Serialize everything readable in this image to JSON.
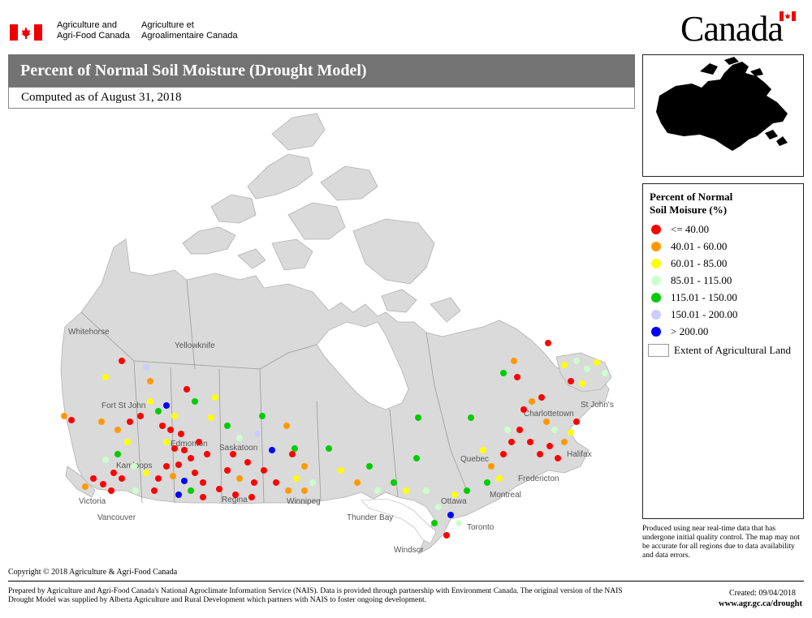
{
  "header": {
    "department_en_line1": "Agriculture and",
    "department_en_line2": "Agri-Food Canada",
    "department_fr_line1": "Agriculture et",
    "department_fr_line2": "Agroalimentaire Canada",
    "wordmark": "Canada"
  },
  "title": "Percent of Normal Soil Moisture (Drought Model)",
  "subtitle": "Computed as of August 31, 2018",
  "legend": {
    "title_line1": "Percent of Normal",
    "title_line2": "Soil Moisure (%)",
    "classes": [
      {
        "label": "<= 40.00",
        "color": "#ff0000"
      },
      {
        "label": "40.01 - 60.00",
        "color": "#ff9900"
      },
      {
        "label": "60.01 - 85.00",
        "color": "#ffff00"
      },
      {
        "label": "85.01 - 115.00",
        "color": "#ccffcc"
      },
      {
        "label": "115.01 - 150.00",
        "color": "#00cc00"
      },
      {
        "label": "150.01 - 200.00",
        "color": "#ccccff"
      },
      {
        "label": "> 200.00",
        "color": "#0000ff"
      }
    ],
    "extent_label": "Extent of Agricultural Land"
  },
  "disclaimer": "Produced using near real-time data that has undergone initial quality control.  The map may not be accurate for all regions due to data availability and data errors.",
  "cities": [
    "Whitehorse",
    "Yellowknife",
    "Fort St John",
    "Edmonton",
    "Saskatoon",
    "Kamloops",
    "Victoria",
    "Vancouver",
    "Regina",
    "Winnipeg",
    "Thunder Bay",
    "Windsor",
    "Toronto",
    "Ottawa",
    "Montreal",
    "Quebec",
    "Fredericton",
    "Charlottetown",
    "Halifax",
    "St John's"
  ],
  "copyright": "Copyright © 2018 Agriculture & Agri-Food Canada",
  "footer": "Prepared by Agriculture and Agri-Food Canada's National Agroclimate Information Service (NAIS).  Data is provided through partnership with Environment Canada. The original version of the NAIS Drought Model was supplied by Alberta Agriculture and Rural Development which partners with NAIS to foster ongoing development.",
  "created": "Created:  09/04/2018",
  "url": "www.agr.gc.ca/drought",
  "colors": {
    "land": "#dadada",
    "water": "#ffffff",
    "title_bar": "#737373"
  }
}
